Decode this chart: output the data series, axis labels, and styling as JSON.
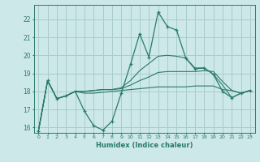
{
  "xlabel": "Humidex (Indice chaleur)",
  "background_color": "#cce8e8",
  "grid_color": "#aacccc",
  "line_color": "#2a7a6a",
  "xlim": [
    -0.5,
    23.5
  ],
  "ylim": [
    15.7,
    22.8
  ],
  "yticks": [
    16,
    17,
    18,
    19,
    20,
    21,
    22
  ],
  "xticks": [
    0,
    1,
    2,
    3,
    4,
    5,
    6,
    7,
    8,
    9,
    10,
    11,
    12,
    13,
    14,
    15,
    16,
    17,
    18,
    19,
    20,
    21,
    22,
    23
  ],
  "main_series": [
    15.8,
    18.6,
    17.6,
    17.75,
    18.0,
    16.9,
    16.1,
    15.85,
    16.35,
    17.9,
    19.5,
    21.2,
    19.9,
    22.4,
    21.6,
    21.4,
    19.85,
    19.25,
    19.3,
    18.95,
    18.0,
    17.65,
    17.9,
    18.05
  ],
  "trend1": [
    15.8,
    18.6,
    17.6,
    17.75,
    18.0,
    17.9,
    17.9,
    17.95,
    18.0,
    18.05,
    18.1,
    18.15,
    18.2,
    18.25,
    18.25,
    18.25,
    18.25,
    18.3,
    18.3,
    18.3,
    18.1,
    18.05,
    17.9,
    18.05
  ],
  "trend2": [
    15.8,
    18.6,
    17.6,
    17.75,
    18.0,
    18.0,
    18.05,
    18.1,
    18.1,
    18.15,
    18.35,
    18.6,
    18.8,
    19.05,
    19.1,
    19.1,
    19.1,
    19.1,
    19.15,
    19.1,
    18.55,
    18.05,
    17.9,
    18.05
  ],
  "trend3": [
    15.8,
    18.6,
    17.6,
    17.75,
    18.0,
    18.0,
    18.05,
    18.1,
    18.1,
    18.2,
    18.6,
    19.15,
    19.55,
    19.95,
    20.0,
    19.95,
    19.85,
    19.3,
    19.3,
    18.95,
    18.35,
    17.65,
    17.9,
    18.05
  ]
}
